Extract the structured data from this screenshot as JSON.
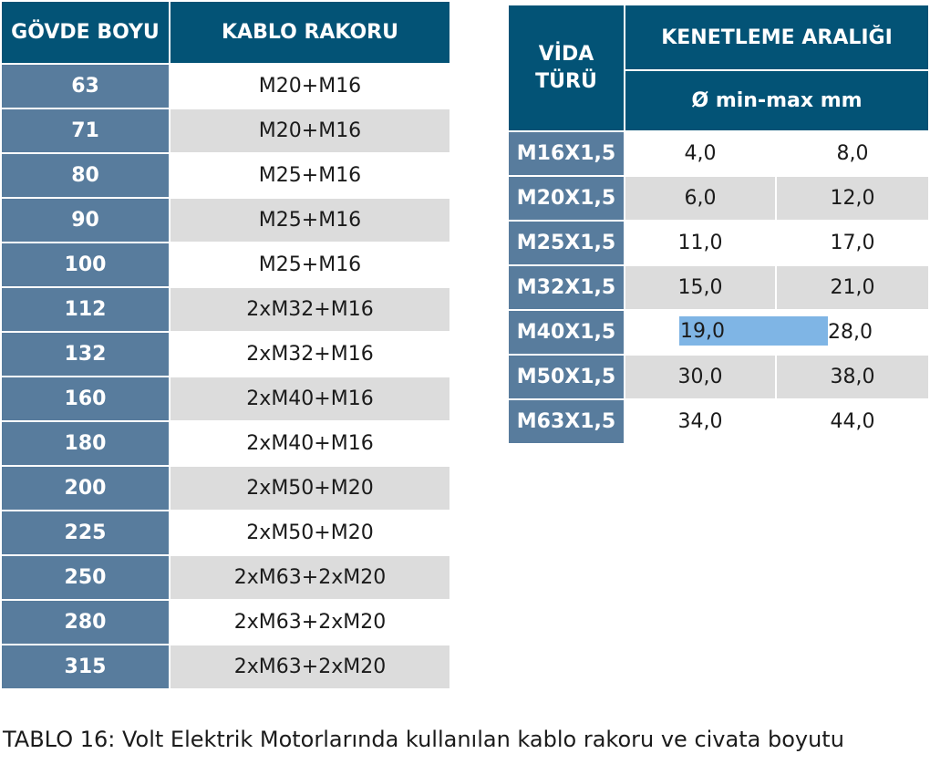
{
  "table1": {
    "headers": [
      "GÖVDE BOYU",
      "KABLO RAKORU"
    ],
    "rows": [
      [
        "63",
        "M20+M16"
      ],
      [
        "71",
        "M20+M16"
      ],
      [
        "80",
        "M25+M16"
      ],
      [
        "90",
        "M25+M16"
      ],
      [
        "100",
        "M25+M16"
      ],
      [
        "112",
        "2xM32+M16"
      ],
      [
        "132",
        "2xM32+M16"
      ],
      [
        "160",
        "2xM40+M16"
      ],
      [
        "180",
        "2xM40+M16"
      ],
      [
        "200",
        "2xM50+M20"
      ],
      [
        "225",
        "2xM50+M20"
      ],
      [
        "250",
        "2xM63+2xM20"
      ],
      [
        "280",
        "2xM63+2xM20"
      ],
      [
        "315",
        "2xM63+2xM20"
      ]
    ]
  },
  "table2": {
    "vida_header_line1": "VİDA",
    "vida_header_line2": "TÜRÜ",
    "range_header": "KENETLEME ARALIĞI",
    "unit_header": "Ø min-max mm",
    "rows": [
      [
        "M16X1,5",
        "4,0",
        "8,0"
      ],
      [
        "M20X1,5",
        "6,0",
        "12,0"
      ],
      [
        "M25X1,5",
        "11,0",
        "17,0"
      ],
      [
        "M32X1,5",
        "15,0",
        "21,0"
      ],
      [
        "M40X1,5",
        "19,0",
        "28,0"
      ],
      [
        "M50X1,5",
        "30,0",
        "38,0"
      ],
      [
        "M63X1,5",
        "34,0",
        "44,0"
      ]
    ],
    "selected_row": 4
  },
  "caption": "TABLO 16: Volt Elektrik Motorlarında kullanılan kablo rakoru ve civata boyutu",
  "colors": {
    "header_bg": "#035376",
    "first_col_bg": "#587c9d",
    "alt_row_bg": "#dcdcdc",
    "selection": "#7fb5e5"
  }
}
